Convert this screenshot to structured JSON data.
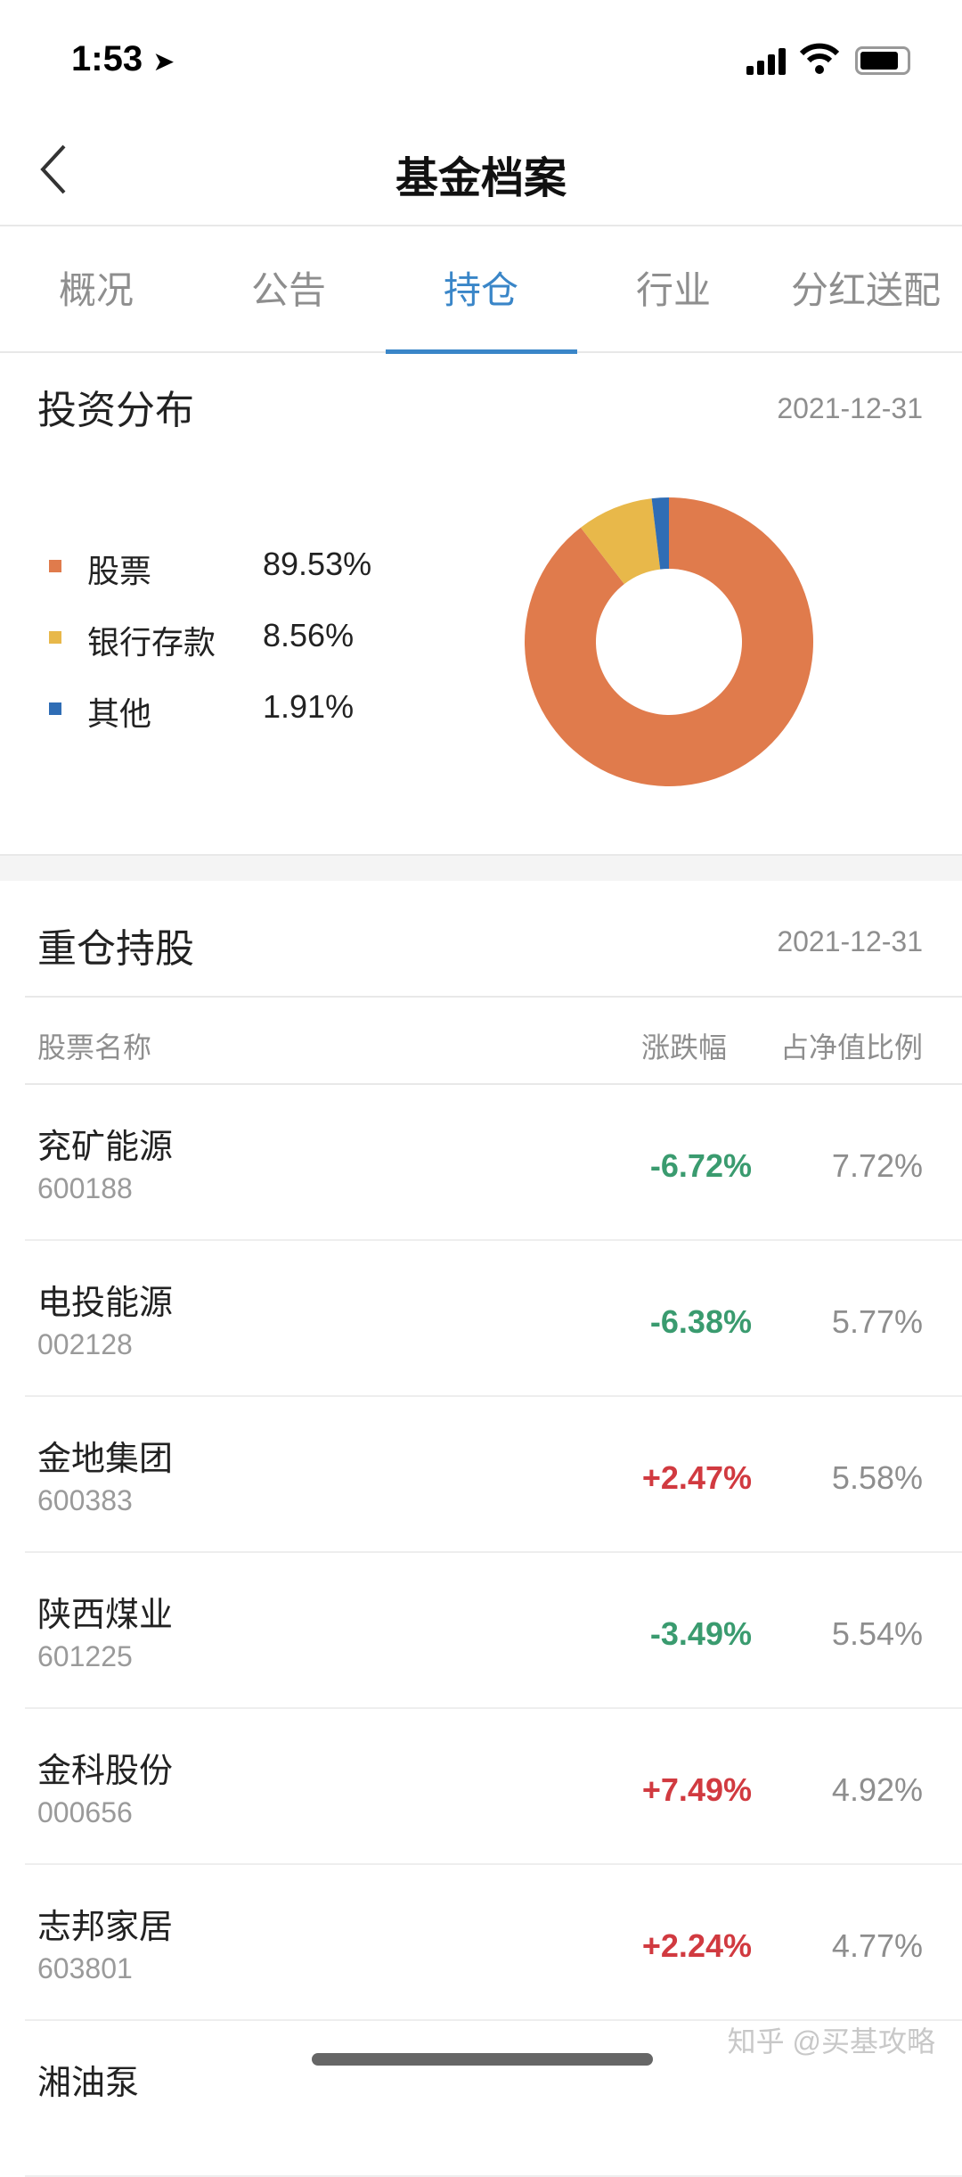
{
  "status_bar": {
    "time": "1:53"
  },
  "nav": {
    "title": "基金档案"
  },
  "tabs": [
    {
      "label": "概况"
    },
    {
      "label": "公告"
    },
    {
      "label": "持仓",
      "active": true
    },
    {
      "label": "行业"
    },
    {
      "label": "分红送配"
    }
  ],
  "allocation": {
    "title": "投资分布",
    "date": "2021-12-31",
    "items": [
      {
        "label": "股票",
        "value": "89.53%",
        "pct": 89.53,
        "color": "#E07B4C"
      },
      {
        "label": "银行存款",
        "value": "8.56%",
        "pct": 8.56,
        "color": "#E8B84A"
      },
      {
        "label": "其他",
        "value": "1.91%",
        "pct": 1.91,
        "color": "#2F6DB5"
      }
    ]
  },
  "holdings": {
    "title": "重仓持股",
    "date": "2021-12-31",
    "columns": {
      "name": "股票名称",
      "change": "涨跌幅",
      "weight": "占净值比例"
    },
    "rows": [
      {
        "name": "兖矿能源",
        "code": "600188",
        "change": "-6.72%",
        "weight": "7.72%"
      },
      {
        "name": "电投能源",
        "code": "002128",
        "change": "-6.38%",
        "weight": "5.77%"
      },
      {
        "name": "金地集团",
        "code": "600383",
        "change": "+2.47%",
        "weight": "5.58%"
      },
      {
        "name": "陕西煤业",
        "code": "601225",
        "change": "-3.49%",
        "weight": "5.54%"
      },
      {
        "name": "金科股份",
        "code": "000656",
        "change": "+7.49%",
        "weight": "4.92%"
      },
      {
        "name": "志邦家居",
        "code": "603801",
        "change": "+2.24%",
        "weight": "4.77%"
      },
      {
        "name": "湘油泵",
        "code": "",
        "change": "",
        "weight": ""
      }
    ]
  },
  "colors": {
    "up": "#D13A40",
    "down": "#3A9B6F",
    "accent": "#3A86C8"
  },
  "watermark": "知乎 @买基攻略"
}
